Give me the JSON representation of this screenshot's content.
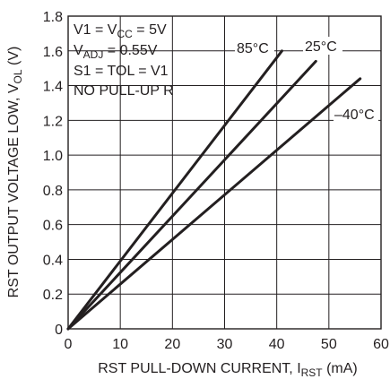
{
  "chart_data": {
    "type": "line",
    "title": "",
    "xlabel": {
      "text": "RST PULL-DOWN CURRENT, I",
      "sub": "RST",
      "suffix": " (mA)"
    },
    "ylabel": {
      "text": "RST OUTPUT VOLTAGE LOW, V",
      "sub": "OL",
      "suffix": " (V)"
    },
    "xlim": [
      0,
      60
    ],
    "ylim": [
      0,
      1.8
    ],
    "xticks": [
      0,
      10,
      20,
      30,
      40,
      50,
      60
    ],
    "yticks": [
      0,
      0.2,
      0.4,
      0.6,
      0.8,
      1.0,
      1.2,
      1.4,
      1.6,
      1.8
    ],
    "xtick_labels": [
      "0",
      "10",
      "20",
      "30",
      "40",
      "50",
      "60"
    ],
    "ytick_labels": [
      "0",
      "0.2",
      "0.4",
      "0.6",
      "0.8",
      "1.0",
      "1.2",
      "1.4",
      "1.6",
      "1.8"
    ],
    "grid": true,
    "series": [
      {
        "name": "85°C",
        "x": [
          0,
          41
        ],
        "y": [
          0,
          1.6
        ]
      },
      {
        "name": "25°C",
        "x": [
          0,
          47.5
        ],
        "y": [
          0,
          1.54
        ]
      },
      {
        "name": "–40°C",
        "x": [
          0,
          56
        ],
        "y": [
          0,
          1.44
        ]
      }
    ],
    "conditions": [
      {
        "text": "V1 = V",
        "sub": "CC",
        "suffix": " = 5V"
      },
      {
        "text": "V",
        "sub": "ADJ",
        "suffix": " = 0.55V"
      },
      {
        "text": "S1 = TOL = V1",
        "sub": "",
        "suffix": ""
      },
      {
        "text": "NO PULL-UP R",
        "sub": "",
        "suffix": ""
      }
    ]
  }
}
